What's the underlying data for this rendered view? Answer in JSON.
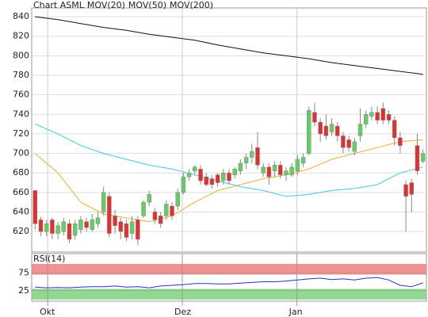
{
  "chart_data": [
    {
      "type": "candlestick",
      "series": [
        {
          "name": "Chart ASML",
          "color": "#e8643c",
          "up_color": "#66cc66",
          "down_color": "#e23030",
          "open": [
            662,
            632,
            620,
            632,
            618,
            620,
            628,
            616,
            622,
            630,
            622,
            628,
            640,
            656,
            636,
            630,
            628,
            618,
            632,
            636,
            650,
            640,
            636,
            636,
            646,
            646,
            660,
            676,
            682,
            684,
            676,
            674,
            678,
            672,
            680,
            678,
            682,
            690,
            696,
            706,
            680,
            686,
            682,
            688,
            678,
            678,
            682,
            690,
            700,
            742,
            732,
            728,
            722,
            728,
            718,
            714,
            702,
            718,
            730,
            738,
            742,
            746,
            740,
            734,
            716,
            668,
            670,
            708,
            692
          ],
          "high": [
            662,
            635,
            632,
            634,
            630,
            634,
            632,
            632,
            636,
            634,
            638,
            640,
            666,
            660,
            642,
            634,
            632,
            636,
            636,
            652,
            662,
            644,
            640,
            652,
            650,
            664,
            680,
            684,
            688,
            688,
            680,
            678,
            680,
            684,
            684,
            686,
            694,
            700,
            710,
            722,
            690,
            690,
            692,
            692,
            686,
            690,
            698,
            700,
            748,
            752,
            736,
            740,
            736,
            732,
            722,
            718,
            716,
            746,
            744,
            748,
            748,
            752,
            744,
            738,
            722,
            672,
            674,
            720,
            704
          ],
          "low": [
            622,
            615,
            615,
            612,
            612,
            616,
            608,
            612,
            618,
            620,
            620,
            624,
            636,
            614,
            618,
            612,
            610,
            612,
            606,
            634,
            646,
            628,
            624,
            632,
            632,
            642,
            658,
            672,
            678,
            668,
            666,
            664,
            666,
            668,
            668,
            674,
            678,
            684,
            690,
            684,
            676,
            668,
            676,
            674,
            672,
            676,
            678,
            686,
            698,
            728,
            712,
            714,
            718,
            712,
            700,
            702,
            698,
            712,
            726,
            734,
            730,
            730,
            730,
            708,
            700,
            620,
            640,
            678,
            690
          ],
          "close": [
            628,
            620,
            628,
            618,
            626,
            630,
            612,
            628,
            632,
            624,
            632,
            634,
            660,
            618,
            626,
            620,
            614,
            630,
            612,
            650,
            658,
            632,
            628,
            648,
            636,
            660,
            676,
            680,
            686,
            672,
            668,
            668,
            670,
            680,
            672,
            684,
            690,
            696,
            702,
            688,
            686,
            676,
            688,
            678,
            682,
            686,
            694,
            696,
            744,
            732,
            720,
            718,
            730,
            718,
            706,
            706,
            712,
            730,
            740,
            742,
            734,
            734,
            734,
            716,
            708,
            656,
            658,
            682,
            700
          ]
        }
      ],
      "lines": [
        {
          "name": "MOV(20)",
          "color": "#f0b030",
          "x": [
            0,
            4,
            8,
            12,
            16,
            20,
            24,
            28,
            32,
            36,
            40,
            44,
            48,
            52,
            56,
            60,
            64,
            68
          ],
          "values": [
            700,
            680,
            650,
            638,
            634,
            630,
            636,
            650,
            662,
            668,
            674,
            678,
            684,
            694,
            700,
            706,
            712,
            714
          ]
        },
        {
          "name": "MOV(50)",
          "color": "#40c8e0",
          "x": [
            0,
            4,
            8,
            12,
            16,
            20,
            24,
            28,
            32,
            36,
            40,
            44,
            48,
            52,
            56,
            60,
            64,
            68
          ],
          "values": [
            730,
            720,
            708,
            700,
            694,
            688,
            684,
            678,
            672,
            666,
            662,
            656,
            658,
            662,
            664,
            668,
            680,
            686
          ]
        },
        {
          "name": "MOV(200)",
          "color": "#111111",
          "x": [
            0,
            4,
            8,
            12,
            16,
            20,
            24,
            28,
            32,
            36,
            40,
            44,
            48,
            52,
            56,
            60,
            64,
            68
          ],
          "values": [
            840,
            837,
            833,
            829,
            826,
            822,
            819,
            816,
            811,
            807,
            803,
            800,
            797,
            793,
            790,
            787,
            784,
            781
          ]
        }
      ],
      "xlim": [
        -0.6,
        68.6
      ],
      "ylim": [
        599,
        849
      ],
      "yticks": [
        620,
        640,
        660,
        680,
        700,
        720,
        740,
        760,
        780,
        800,
        820,
        840
      ],
      "xticks": [
        {
          "value": 2.2,
          "label": "Okt"
        },
        {
          "value": 25.8,
          "label": "Dez"
        },
        {
          "value": 45.9,
          "label": "Jan"
        }
      ],
      "grid": true
    },
    {
      "type": "line",
      "title": "RSI(14)",
      "color": "#2233cc",
      "x": [
        0,
        2,
        4,
        6,
        8,
        10,
        12,
        14,
        16,
        18,
        20,
        22,
        24,
        26,
        28,
        30,
        32,
        34,
        36,
        38,
        40,
        42,
        44,
        46,
        48,
        50,
        52,
        54,
        56,
        58,
        60,
        62,
        64,
        66,
        68
      ],
      "values": [
        35,
        33,
        34,
        33,
        35,
        36,
        36,
        38,
        35,
        36,
        33,
        38,
        40,
        42,
        45,
        45,
        44,
        44,
        46,
        48,
        50,
        50,
        52,
        55,
        58,
        60,
        56,
        58,
        55,
        60,
        62,
        55,
        40,
        36,
        47
      ],
      "bands": [
        {
          "range": [
            70,
            100
          ],
          "color": "#f08080"
        },
        {
          "range": [
            0,
            30
          ],
          "color": "#80d080"
        }
      ],
      "ylim": [
        0,
        100
      ],
      "yticks": [
        25,
        75
      ]
    }
  ]
}
